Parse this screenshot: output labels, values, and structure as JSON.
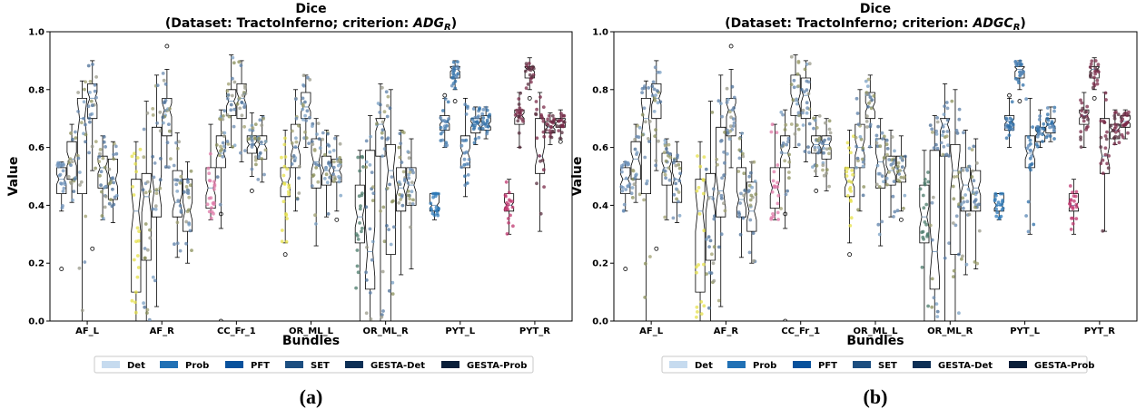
{
  "chart_data": [
    {
      "type": "box",
      "panel_label": "(a)",
      "title": "Dice",
      "subtitle_prefix": "(Dataset: TractoInferno; criterion: ",
      "subtitle_crit": "ADG",
      "subtitle_sub": "R",
      "subtitle_suffix": ")",
      "xlabel": "Bundles",
      "ylabel": "Value",
      "ylim": [
        0,
        1
      ],
      "yticks": [
        0.0,
        0.2,
        0.4,
        0.6,
        0.8,
        1.0
      ],
      "categories": [
        "AF_L",
        "AF_R",
        "CC_Fr_1",
        "OR_ML_L",
        "OR_ML_R",
        "PYT_L",
        "PYT_R"
      ],
      "series": [
        {
          "name": "Det",
          "color": "#c6dbef",
          "boxes": [
            {
              "q1": 0.44,
              "median": 0.49,
              "q3": 0.53,
              "whislo": 0.38,
              "whishi": 0.55,
              "fliers": [
                0.18
              ]
            },
            {
              "q1": 0.1,
              "median": 0.38,
              "q3": 0.49,
              "whislo": 0.0,
              "whishi": 0.62,
              "fliers": []
            },
            {
              "q1": 0.39,
              "median": 0.46,
              "q3": 0.53,
              "whislo": 0.35,
              "whishi": 0.68,
              "fliers": []
            },
            {
              "q1": 0.43,
              "median": 0.48,
              "q3": 0.53,
              "whislo": 0.27,
              "whishi": 0.66,
              "fliers": [
                0.23
              ]
            },
            {
              "q1": 0.27,
              "median": 0.36,
              "q3": 0.47,
              "whislo": 0.0,
              "whishi": 0.59,
              "fliers": []
            },
            {
              "q1": 0.38,
              "median": 0.4,
              "q3": 0.44,
              "whislo": 0.35,
              "whishi": 0.44,
              "fliers": []
            },
            {
              "q1": 0.38,
              "median": 0.4,
              "q3": 0.44,
              "whislo": 0.3,
              "whishi": 0.49,
              "fliers": []
            }
          ]
        },
        {
          "name": "Prob",
          "color": "#2171b5",
          "boxes": [
            {
              "q1": 0.49,
              "median": 0.56,
              "q3": 0.62,
              "whislo": 0.41,
              "whishi": 0.68,
              "fliers": []
            },
            {
              "q1": 0.21,
              "median": 0.43,
              "q3": 0.51,
              "whislo": 0.0,
              "whishi": 0.76,
              "fliers": []
            },
            {
              "q1": 0.53,
              "median": 0.58,
              "q3": 0.64,
              "whislo": 0.32,
              "whishi": 0.73,
              "fliers": [
                0.0,
                0.37
              ]
            },
            {
              "q1": 0.53,
              "median": 0.6,
              "q3": 0.68,
              "whislo": 0.38,
              "whishi": 0.8,
              "fliers": []
            },
            {
              "q1": 0.11,
              "median": 0.24,
              "q3": 0.59,
              "whislo": 0.0,
              "whishi": 0.71,
              "fliers": []
            },
            {
              "q1": 0.66,
              "median": 0.69,
              "q3": 0.71,
              "whislo": 0.6,
              "whishi": 0.77,
              "fliers": [
                0.78
              ]
            },
            {
              "q1": 0.68,
              "median": 0.71,
              "q3": 0.73,
              "whislo": 0.6,
              "whishi": 0.79,
              "fliers": []
            }
          ]
        },
        {
          "name": "PFT",
          "color": "#08519c",
          "boxes": [
            {
              "q1": 0.44,
              "median": 0.7,
              "q3": 0.77,
              "whislo": 0.0,
              "whishi": 0.83,
              "fliers": []
            },
            {
              "q1": 0.36,
              "median": 0.45,
              "q3": 0.67,
              "whislo": 0.05,
              "whishi": 0.85,
              "fliers": []
            },
            {
              "q1": 0.71,
              "median": 0.76,
              "q3": 0.8,
              "whislo": 0.6,
              "whishi": 0.92,
              "fliers": []
            },
            {
              "q1": 0.7,
              "median": 0.74,
              "q3": 0.79,
              "whislo": 0.6,
              "whishi": 0.85,
              "fliers": []
            },
            {
              "q1": 0.57,
              "median": 0.68,
              "q3": 0.7,
              "whislo": 0.0,
              "whishi": 0.82,
              "fliers": []
            },
            {
              "q1": 0.84,
              "median": 0.87,
              "q3": 0.88,
              "whislo": 0.8,
              "whishi": 0.9,
              "fliers": [
                0.76
              ]
            },
            {
              "q1": 0.84,
              "median": 0.87,
              "q3": 0.88,
              "whislo": 0.8,
              "whishi": 0.91,
              "fliers": [
                0.77
              ]
            }
          ]
        },
        {
          "name": "SET",
          "color": "#1c4e80",
          "boxes": [
            {
              "q1": 0.7,
              "median": 0.77,
              "q3": 0.82,
              "whislo": 0.52,
              "whishi": 0.9,
              "fliers": [
                0.25
              ]
            },
            {
              "q1": 0.64,
              "median": 0.73,
              "q3": 0.77,
              "whislo": 0.53,
              "whishi": 0.87,
              "fliers": [
                0.95
              ]
            },
            {
              "q1": 0.7,
              "median": 0.77,
              "q3": 0.82,
              "whislo": 0.55,
              "whishi": 0.9,
              "fliers": []
            },
            {
              "q1": 0.46,
              "median": 0.55,
              "q3": 0.63,
              "whislo": 0.26,
              "whishi": 0.7,
              "fliers": []
            },
            {
              "q1": 0.23,
              "median": 0.52,
              "q3": 0.61,
              "whislo": 0.0,
              "whishi": 0.8,
              "fliers": []
            },
            {
              "q1": 0.53,
              "median": 0.58,
              "q3": 0.64,
              "whislo": 0.43,
              "whishi": 0.77,
              "fliers": []
            },
            {
              "q1": 0.51,
              "median": 0.57,
              "q3": 0.7,
              "whislo": 0.31,
              "whishi": 0.79,
              "fliers": []
            }
          ]
        },
        {
          "name": "GESTA-Det",
          "color": "#0d2f55",
          "boxes": [
            {
              "q1": 0.46,
              "median": 0.53,
              "q3": 0.57,
              "whislo": 0.35,
              "whishi": 0.64,
              "fliers": []
            },
            {
              "q1": 0.36,
              "median": 0.41,
              "q3": 0.52,
              "whislo": 0.22,
              "whishi": 0.65,
              "fliers": []
            },
            {
              "q1": 0.58,
              "median": 0.61,
              "q3": 0.64,
              "whislo": 0.5,
              "whishi": 0.72,
              "fliers": [
                0.45
              ]
            },
            {
              "q1": 0.47,
              "median": 0.52,
              "q3": 0.57,
              "whislo": 0.36,
              "whishi": 0.66,
              "fliers": []
            },
            {
              "q1": 0.38,
              "median": 0.46,
              "q3": 0.53,
              "whislo": 0.16,
              "whishi": 0.66,
              "fliers": []
            },
            {
              "q1": 0.65,
              "median": 0.68,
              "q3": 0.7,
              "whislo": 0.61,
              "whishi": 0.74,
              "fliers": []
            },
            {
              "q1": 0.65,
              "median": 0.67,
              "q3": 0.69,
              "whislo": 0.61,
              "whishi": 0.72,
              "fliers": []
            }
          ]
        },
        {
          "name": "GESTA-Prob",
          "color": "#0a1f3a",
          "boxes": [
            {
              "q1": 0.42,
              "median": 0.49,
              "q3": 0.56,
              "whislo": 0.34,
              "whishi": 0.62,
              "fliers": []
            },
            {
              "q1": 0.31,
              "median": 0.38,
              "q3": 0.49,
              "whislo": 0.2,
              "whishi": 0.55,
              "fliers": []
            },
            {
              "q1": 0.56,
              "median": 0.61,
              "q3": 0.64,
              "whislo": 0.48,
              "whishi": 0.71,
              "fliers": []
            },
            {
              "q1": 0.48,
              "median": 0.52,
              "q3": 0.56,
              "whislo": 0.38,
              "whishi": 0.64,
              "fliers": [
                0.35
              ]
            },
            {
              "q1": 0.4,
              "median": 0.47,
              "q3": 0.53,
              "whislo": 0.18,
              "whishi": 0.63,
              "fliers": []
            },
            {
              "q1": 0.66,
              "median": 0.68,
              "q3": 0.71,
              "whislo": 0.63,
              "whishi": 0.74,
              "fliers": []
            },
            {
              "q1": 0.67,
              "median": 0.69,
              "q3": 0.7,
              "whislo": 0.63,
              "whishi": 0.73,
              "fliers": [
                0.62
              ]
            }
          ]
        }
      ]
    },
    {
      "type": "box",
      "panel_label": "(b)",
      "title": "Dice",
      "subtitle_prefix": "(Dataset: TractoInferno; criterion: ",
      "subtitle_crit": "ADGC",
      "subtitle_sub": "R",
      "subtitle_suffix": ")",
      "xlabel": "Bundles",
      "ylabel": "Value",
      "ylim": [
        0,
        1
      ],
      "yticks": [
        0.0,
        0.2,
        0.4,
        0.6,
        0.8,
        1.0
      ],
      "categories": [
        "AF_L",
        "AF_R",
        "CC_Fr_1",
        "OR_ML_L",
        "OR_ML_R",
        "PYT_L",
        "PYT_R"
      ],
      "series": [
        {
          "name": "Det",
          "color": "#c6dbef",
          "boxes": [
            {
              "q1": 0.44,
              "median": 0.49,
              "q3": 0.53,
              "whislo": 0.38,
              "whishi": 0.55,
              "fliers": [
                0.18
              ]
            },
            {
              "q1": 0.1,
              "median": 0.38,
              "q3": 0.49,
              "whislo": 0.0,
              "whishi": 0.62,
              "fliers": []
            },
            {
              "q1": 0.39,
              "median": 0.46,
              "q3": 0.53,
              "whislo": 0.35,
              "whishi": 0.68,
              "fliers": []
            },
            {
              "q1": 0.43,
              "median": 0.48,
              "q3": 0.53,
              "whislo": 0.27,
              "whishi": 0.66,
              "fliers": [
                0.23
              ]
            },
            {
              "q1": 0.27,
              "median": 0.36,
              "q3": 0.47,
              "whislo": 0.0,
              "whishi": 0.59,
              "fliers": []
            },
            {
              "q1": 0.38,
              "median": 0.4,
              "q3": 0.44,
              "whislo": 0.35,
              "whishi": 0.44,
              "fliers": []
            },
            {
              "q1": 0.38,
              "median": 0.4,
              "q3": 0.44,
              "whislo": 0.3,
              "whishi": 0.49,
              "fliers": []
            }
          ]
        },
        {
          "name": "Prob",
          "color": "#2171b5",
          "boxes": [
            {
              "q1": 0.49,
              "median": 0.56,
              "q3": 0.62,
              "whislo": 0.41,
              "whishi": 0.68,
              "fliers": []
            },
            {
              "q1": 0.21,
              "median": 0.43,
              "q3": 0.51,
              "whislo": 0.0,
              "whishi": 0.76,
              "fliers": []
            },
            {
              "q1": 0.53,
              "median": 0.58,
              "q3": 0.64,
              "whislo": 0.32,
              "whishi": 0.73,
              "fliers": [
                0.0,
                0.37
              ]
            },
            {
              "q1": 0.53,
              "median": 0.6,
              "q3": 0.68,
              "whislo": 0.38,
              "whishi": 0.8,
              "fliers": []
            },
            {
              "q1": 0.11,
              "median": 0.24,
              "q3": 0.59,
              "whislo": 0.0,
              "whishi": 0.71,
              "fliers": []
            },
            {
              "q1": 0.66,
              "median": 0.69,
              "q3": 0.71,
              "whislo": 0.6,
              "whishi": 0.77,
              "fliers": [
                0.78
              ]
            },
            {
              "q1": 0.68,
              "median": 0.71,
              "q3": 0.73,
              "whislo": 0.6,
              "whishi": 0.79,
              "fliers": []
            }
          ]
        },
        {
          "name": "PFT",
          "color": "#08519c",
          "boxes": [
            {
              "q1": 0.44,
              "median": 0.7,
              "q3": 0.77,
              "whislo": 0.0,
              "whishi": 0.83,
              "fliers": []
            },
            {
              "q1": 0.36,
              "median": 0.45,
              "q3": 0.67,
              "whislo": 0.05,
              "whishi": 0.85,
              "fliers": []
            },
            {
              "q1": 0.71,
              "median": 0.76,
              "q3": 0.85,
              "whislo": 0.6,
              "whishi": 0.92,
              "fliers": []
            },
            {
              "q1": 0.7,
              "median": 0.74,
              "q3": 0.79,
              "whislo": 0.6,
              "whishi": 0.85,
              "fliers": []
            },
            {
              "q1": 0.57,
              "median": 0.68,
              "q3": 0.7,
              "whislo": 0.0,
              "whishi": 0.82,
              "fliers": []
            },
            {
              "q1": 0.84,
              "median": 0.87,
              "q3": 0.88,
              "whislo": 0.8,
              "whishi": 0.9,
              "fliers": [
                0.76
              ]
            },
            {
              "q1": 0.84,
              "median": 0.87,
              "q3": 0.88,
              "whislo": 0.8,
              "whishi": 0.91,
              "fliers": [
                0.77
              ]
            }
          ]
        },
        {
          "name": "SET",
          "color": "#1c4e80",
          "boxes": [
            {
              "q1": 0.7,
              "median": 0.77,
              "q3": 0.82,
              "whislo": 0.52,
              "whishi": 0.9,
              "fliers": [
                0.25
              ]
            },
            {
              "q1": 0.64,
              "median": 0.73,
              "q3": 0.77,
              "whislo": 0.53,
              "whishi": 0.87,
              "fliers": [
                0.95
              ]
            },
            {
              "q1": 0.7,
              "median": 0.78,
              "q3": 0.84,
              "whislo": 0.55,
              "whishi": 0.9,
              "fliers": []
            },
            {
              "q1": 0.46,
              "median": 0.55,
              "q3": 0.63,
              "whislo": 0.26,
              "whishi": 0.7,
              "fliers": []
            },
            {
              "q1": 0.23,
              "median": 0.52,
              "q3": 0.61,
              "whislo": 0.0,
              "whishi": 0.8,
              "fliers": []
            },
            {
              "q1": 0.53,
              "median": 0.58,
              "q3": 0.64,
              "whislo": 0.3,
              "whishi": 0.77,
              "fliers": []
            },
            {
              "q1": 0.51,
              "median": 0.57,
              "q3": 0.7,
              "whislo": 0.31,
              "whishi": 0.79,
              "fliers": []
            }
          ]
        },
        {
          "name": "GESTA-Det",
          "color": "#0d2f55",
          "boxes": [
            {
              "q1": 0.47,
              "median": 0.53,
              "q3": 0.58,
              "whislo": 0.35,
              "whishi": 0.63,
              "fliers": []
            },
            {
              "q1": 0.36,
              "median": 0.42,
              "q3": 0.53,
              "whislo": 0.22,
              "whishi": 0.65,
              "fliers": []
            },
            {
              "q1": 0.58,
              "median": 0.61,
              "q3": 0.64,
              "whislo": 0.5,
              "whishi": 0.71,
              "fliers": [
                0.45
              ]
            },
            {
              "q1": 0.47,
              "median": 0.52,
              "q3": 0.57,
              "whislo": 0.36,
              "whishi": 0.66,
              "fliers": []
            },
            {
              "q1": 0.38,
              "median": 0.47,
              "q3": 0.53,
              "whislo": 0.16,
              "whishi": 0.66,
              "fliers": []
            },
            {
              "q1": 0.62,
              "median": 0.65,
              "q3": 0.67,
              "whislo": 0.6,
              "whishi": 0.73,
              "fliers": []
            },
            {
              "q1": 0.63,
              "median": 0.66,
              "q3": 0.68,
              "whislo": 0.61,
              "whishi": 0.73,
              "fliers": []
            }
          ]
        },
        {
          "name": "GESTA-Prob",
          "color": "#0a1f3a",
          "boxes": [
            {
              "q1": 0.41,
              "median": 0.49,
              "q3": 0.55,
              "whislo": 0.34,
              "whishi": 0.62,
              "fliers": []
            },
            {
              "q1": 0.31,
              "median": 0.38,
              "q3": 0.48,
              "whislo": 0.2,
              "whishi": 0.55,
              "fliers": []
            },
            {
              "q1": 0.56,
              "median": 0.61,
              "q3": 0.64,
              "whislo": 0.45,
              "whishi": 0.7,
              "fliers": []
            },
            {
              "q1": 0.48,
              "median": 0.52,
              "q3": 0.57,
              "whislo": 0.38,
              "whishi": 0.64,
              "fliers": [
                0.35
              ]
            },
            {
              "q1": 0.38,
              "median": 0.46,
              "q3": 0.52,
              "whislo": 0.18,
              "whishi": 0.63,
              "fliers": []
            },
            {
              "q1": 0.65,
              "median": 0.68,
              "q3": 0.7,
              "whislo": 0.62,
              "whishi": 0.74,
              "fliers": []
            },
            {
              "q1": 0.67,
              "median": 0.69,
              "q3": 0.71,
              "whislo": 0.63,
              "whishi": 0.73,
              "fliers": []
            }
          ]
        }
      ]
    }
  ]
}
